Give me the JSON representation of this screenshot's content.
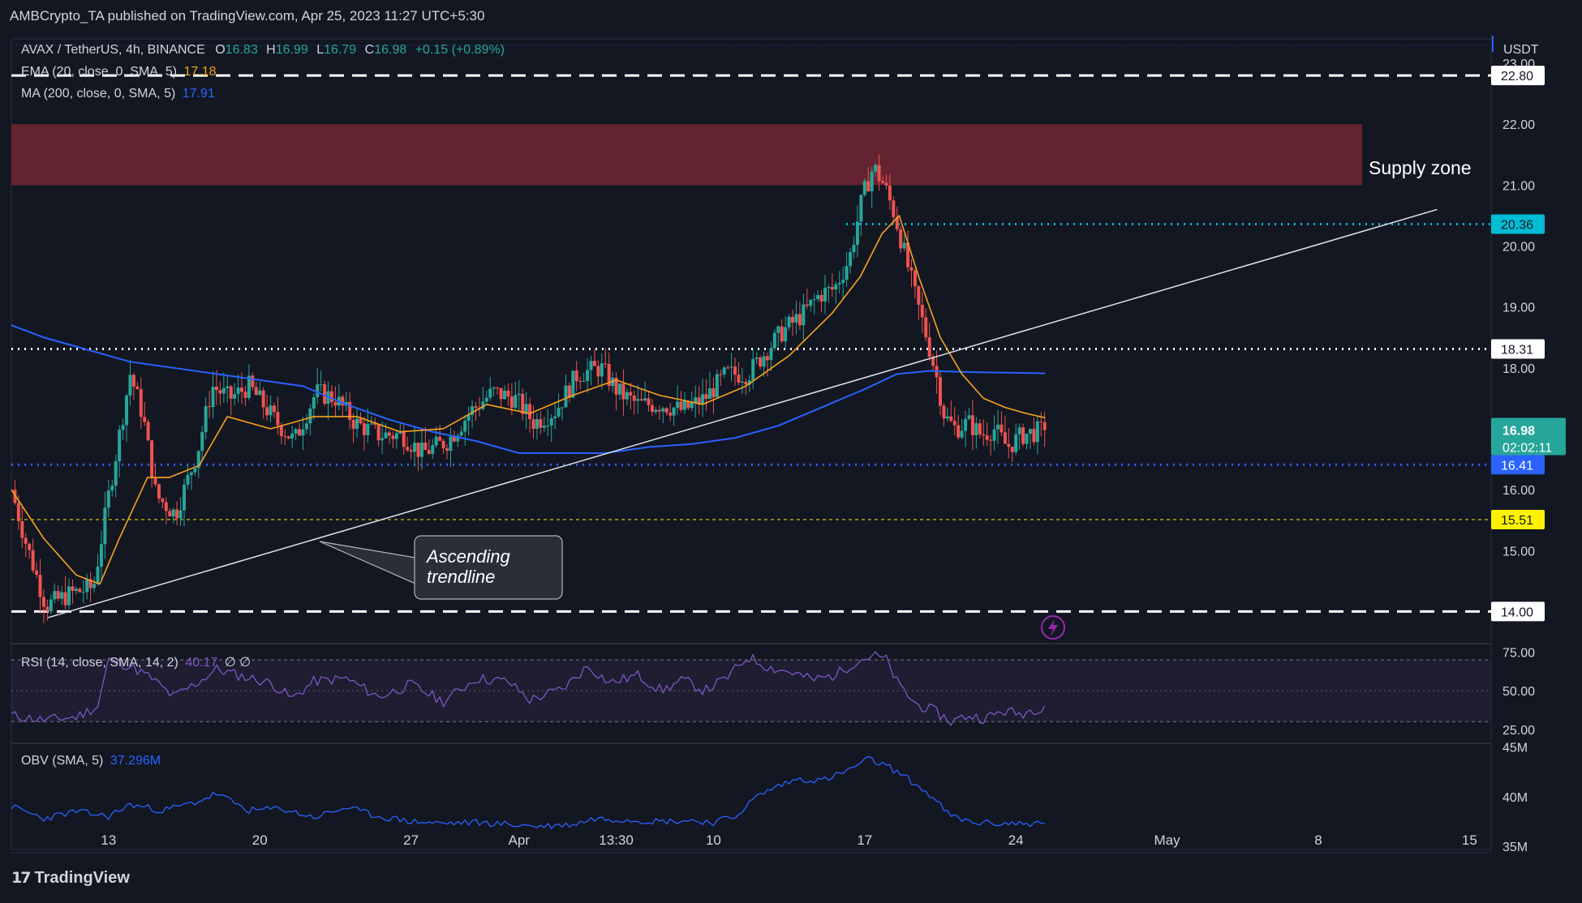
{
  "header": {
    "publisher": "AMBCrypto_TA published on TradingView.com, Apr 25, 2023 11:27 UTC+5:30"
  },
  "main_legend": {
    "symbol": "AVAX / TetherUS, 4h, BINANCE",
    "o_label": "O",
    "o": "16.83",
    "h_label": "H",
    "h": "16.99",
    "l_label": "L",
    "l": "16.79",
    "c_label": "C",
    "c": "16.98",
    "change": "+0.15 (+0.89%)"
  },
  "ema_legend": {
    "label": "EMA (20, close, 0, SMA, 5)",
    "value": "17.18"
  },
  "ma_legend": {
    "label": "MA (200, close, 0, SMA, 5)",
    "value": "17.91"
  },
  "rsi_legend": {
    "label": "RSI (14, close, SMA, 14, 2)",
    "value": "40.17",
    "extra": "∅  ∅"
  },
  "obv_legend": {
    "label": "OBV (SMA, 5)",
    "value": "37.296M"
  },
  "currency": "USDT",
  "colors": {
    "bg": "#131722",
    "up": "#26a69a",
    "down": "#ef5350",
    "ema": "#f7a21b",
    "ma": "#2962ff",
    "rsi": "#7e57c2",
    "obv": "#2962ff",
    "supply": "#6b2532",
    "cyan": "#00bcd4",
    "yellow": "#fff200"
  },
  "footer": {
    "brand": "TradingView"
  },
  "chart_data": {
    "type": "candlestick",
    "title": "AVAX / TetherUS, 4h, BINANCE",
    "ylabel": "USDT",
    "ylim": [
      13.5,
      23.4
    ],
    "y_ticks": [
      "23.00",
      "22.00",
      "21.00",
      "20.00",
      "19.00",
      "18.00",
      "16.00",
      "15.00",
      "14.00"
    ],
    "x_ticks": [
      "13",
      "20",
      "27",
      "Apr",
      "13:30",
      "10",
      "17",
      "24",
      "May",
      "8",
      "15"
    ],
    "x_tick_days": [
      13,
      20,
      27,
      32,
      36.5,
      41,
      48,
      55,
      62,
      69,
      76
    ],
    "x_range_days": [
      8.5,
      77
    ],
    "last_candle_day": 56.35,
    "ohlc_anchor_points": [
      [
        8.5,
        16.0
      ],
      [
        9.2,
        15.1
      ],
      [
        10.1,
        14.1
      ],
      [
        11.3,
        14.3
      ],
      [
        12.3,
        14.4
      ],
      [
        13.0,
        15.9
      ],
      [
        14.0,
        17.9
      ],
      [
        14.6,
        17.2
      ],
      [
        15.2,
        15.9
      ],
      [
        16.1,
        15.6
      ],
      [
        17.1,
        16.6
      ],
      [
        17.8,
        17.7
      ],
      [
        18.6,
        17.5
      ],
      [
        19.5,
        17.7
      ],
      [
        20.8,
        17.1
      ],
      [
        21.6,
        16.8
      ],
      [
        22.6,
        17.6
      ],
      [
        23.5,
        17.5
      ],
      [
        24.4,
        17.1
      ],
      [
        25.5,
        16.9
      ],
      [
        26.6,
        16.9
      ],
      [
        27.5,
        16.6
      ],
      [
        28.7,
        16.8
      ],
      [
        29.8,
        17.3
      ],
      [
        30.8,
        17.6
      ],
      [
        31.8,
        17.5
      ],
      [
        32.7,
        17.1
      ],
      [
        33.7,
        17.3
      ],
      [
        34.7,
        17.9
      ],
      [
        35.8,
        18.0
      ],
      [
        36.6,
        17.6
      ],
      [
        37.5,
        17.4
      ],
      [
        38.6,
        17.4
      ],
      [
        39.6,
        17.3
      ],
      [
        40.6,
        17.5
      ],
      [
        41.6,
        17.9
      ],
      [
        42.6,
        17.9
      ],
      [
        43.5,
        18.3
      ],
      [
        44.2,
        18.6
      ],
      [
        45.2,
        18.9
      ],
      [
        45.9,
        19.2
      ],
      [
        46.6,
        19.3
      ],
      [
        47.3,
        19.8
      ],
      [
        47.9,
        20.8
      ],
      [
        48.4,
        21.3
      ],
      [
        48.9,
        21.0
      ],
      [
        49.4,
        20.5
      ],
      [
        49.9,
        19.8
      ],
      [
        50.4,
        19.1
      ],
      [
        50.8,
        18.6
      ],
      [
        51.3,
        17.9
      ],
      [
        51.7,
        17.2
      ],
      [
        52.2,
        17.0
      ],
      [
        52.8,
        17.1
      ],
      [
        53.4,
        16.9
      ],
      [
        54.0,
        17.0
      ],
      [
        54.6,
        16.7
      ],
      [
        55.3,
        16.9
      ],
      [
        56.35,
        16.98
      ]
    ],
    "ema20": {
      "name": "EMA 20",
      "last": 17.18,
      "points": [
        [
          8.5,
          16.0
        ],
        [
          10,
          15.2
        ],
        [
          11.5,
          14.6
        ],
        [
          12.6,
          14.45
        ],
        [
          13.5,
          15.2
        ],
        [
          14.8,
          16.2
        ],
        [
          15.8,
          16.2
        ],
        [
          17.2,
          16.4
        ],
        [
          18.5,
          17.2
        ],
        [
          20.5,
          17.0
        ],
        [
          22.5,
          17.2
        ],
        [
          24.5,
          17.2
        ],
        [
          26.5,
          16.95
        ],
        [
          28.5,
          17.0
        ],
        [
          30.5,
          17.4
        ],
        [
          32.5,
          17.25
        ],
        [
          34.5,
          17.55
        ],
        [
          36.5,
          17.8
        ],
        [
          38.5,
          17.55
        ],
        [
          40.5,
          17.4
        ],
        [
          42.5,
          17.7
        ],
        [
          44.5,
          18.2
        ],
        [
          46.5,
          18.9
        ],
        [
          47.8,
          19.5
        ],
        [
          48.8,
          20.2
        ],
        [
          49.6,
          20.5
        ],
        [
          50.5,
          19.5
        ],
        [
          51.5,
          18.5
        ],
        [
          52.5,
          17.9
        ],
        [
          53.5,
          17.5
        ],
        [
          54.5,
          17.35
        ],
        [
          55.5,
          17.25
        ],
        [
          56.35,
          17.18
        ]
      ]
    },
    "ma200": {
      "name": "MA 200",
      "last": 17.91,
      "points": [
        [
          8.5,
          18.7
        ],
        [
          10,
          18.5
        ],
        [
          12,
          18.3
        ],
        [
          14,
          18.1
        ],
        [
          16,
          18.0
        ],
        [
          18,
          17.9
        ],
        [
          20,
          17.8
        ],
        [
          22,
          17.7
        ],
        [
          24,
          17.4
        ],
        [
          26,
          17.15
        ],
        [
          28,
          16.95
        ],
        [
          30,
          16.8
        ],
        [
          32,
          16.6
        ],
        [
          34,
          16.6
        ],
        [
          36,
          16.6
        ],
        [
          38,
          16.7
        ],
        [
          40,
          16.75
        ],
        [
          42,
          16.85
        ],
        [
          44,
          17.05
        ],
        [
          46,
          17.35
        ],
        [
          48,
          17.65
        ],
        [
          49.5,
          17.9
        ],
        [
          51,
          17.95
        ],
        [
          53,
          17.93
        ],
        [
          56.35,
          17.91
        ]
      ]
    },
    "price_levels": [
      {
        "label": "22.80",
        "value": 22.8,
        "style": "dashed-white"
      },
      {
        "label": "20.36",
        "value": 20.36,
        "style": "dotted-cyan"
      },
      {
        "label": "18.31",
        "value": 18.31,
        "style": "dotted-white"
      },
      {
        "label": "16.41",
        "value": 16.41,
        "style": "dotted-blue"
      },
      {
        "label": "15.51",
        "value": 15.51,
        "style": "dashed-yellow"
      },
      {
        "label": "14.00",
        "value": 14.0,
        "style": "dashed-white"
      }
    ],
    "current_price": {
      "price": "16.98",
      "countdown": "02:02:11"
    },
    "supply_zone": {
      "label": "Supply zone",
      "low": 21.0,
      "high": 22.0
    },
    "trendline": {
      "label": "Ascending trendline",
      "from": [
        10.2,
        13.9
      ],
      "to": [
        74.5,
        20.6
      ]
    },
    "rsi": {
      "ylim": [
        17,
        80
      ],
      "ticks": [
        "75.00",
        "50.00",
        "25.00"
      ],
      "band": [
        30,
        70
      ],
      "mid": 50,
      "last": 40.17,
      "points": [
        [
          8.5,
          34
        ],
        [
          10,
          31
        ],
        [
          11.5,
          33
        ],
        [
          12.5,
          40
        ],
        [
          13,
          70
        ],
        [
          14,
          66
        ],
        [
          15,
          58
        ],
        [
          16,
          46
        ],
        [
          17.2,
          56
        ],
        [
          18,
          64
        ],
        [
          19,
          60
        ],
        [
          20.5,
          55
        ],
        [
          21.5,
          45
        ],
        [
          22.5,
          56
        ],
        [
          24,
          58
        ],
        [
          25.5,
          46
        ],
        [
          27,
          54
        ],
        [
          28.5,
          43
        ],
        [
          30,
          58
        ],
        [
          31.5,
          56
        ],
        [
          32.5,
          44
        ],
        [
          34,
          51
        ],
        [
          35.2,
          66
        ],
        [
          36.2,
          55
        ],
        [
          37.5,
          60
        ],
        [
          38.6,
          50
        ],
        [
          39.6,
          57
        ],
        [
          40.6,
          50
        ],
        [
          41.6,
          58
        ],
        [
          42.6,
          72
        ],
        [
          43.6,
          65
        ],
        [
          44.6,
          62
        ],
        [
          45.6,
          57
        ],
        [
          46.6,
          60
        ],
        [
          47.6,
          69
        ],
        [
          48.4,
          73
        ],
        [
          49,
          70
        ],
        [
          49.6,
          53
        ],
        [
          50.4,
          41
        ],
        [
          51.2,
          37
        ],
        [
          52,
          30
        ],
        [
          52.8,
          34
        ],
        [
          53.6,
          32
        ],
        [
          54.4,
          37
        ],
        [
          55.2,
          35
        ],
        [
          56.35,
          40.17
        ]
      ]
    },
    "obv": {
      "ylim": [
        34.5,
        45.3
      ],
      "ticks": [
        "45M",
        "40M",
        "35M"
      ],
      "last": 37.296,
      "points": [
        [
          8.5,
          39.0
        ],
        [
          10,
          37.8
        ],
        [
          11.5,
          38.5
        ],
        [
          13,
          38.0
        ],
        [
          14,
          39.2
        ],
        [
          15.5,
          38.6
        ],
        [
          17,
          39.4
        ],
        [
          18,
          40.3
        ],
        [
          19.5,
          38.6
        ],
        [
          21,
          38.8
        ],
        [
          22.5,
          37.9
        ],
        [
          24,
          38.9
        ],
        [
          25.5,
          38.0
        ],
        [
          27,
          37.5
        ],
        [
          28.5,
          37.3
        ],
        [
          30,
          37.4
        ],
        [
          31.5,
          37.2
        ],
        [
          33,
          37.0
        ],
        [
          34.5,
          37.2
        ],
        [
          35.5,
          37.8
        ],
        [
          37,
          37.7
        ],
        [
          38.5,
          37.5
        ],
        [
          40,
          37.6
        ],
        [
          41,
          37.4
        ],
        [
          42,
          38.0
        ],
        [
          43,
          40.0
        ],
        [
          44,
          41.1
        ],
        [
          45,
          41.8
        ],
        [
          46,
          41.6
        ],
        [
          47,
          42.4
        ],
        [
          48.2,
          43.8
        ],
        [
          49.2,
          42.9
        ],
        [
          50,
          41.8
        ],
        [
          51,
          40.2
        ],
        [
          52,
          38.0
        ],
        [
          53,
          37.4
        ],
        [
          54,
          37.3
        ],
        [
          55,
          37.3
        ],
        [
          56.35,
          37.296
        ]
      ]
    }
  }
}
